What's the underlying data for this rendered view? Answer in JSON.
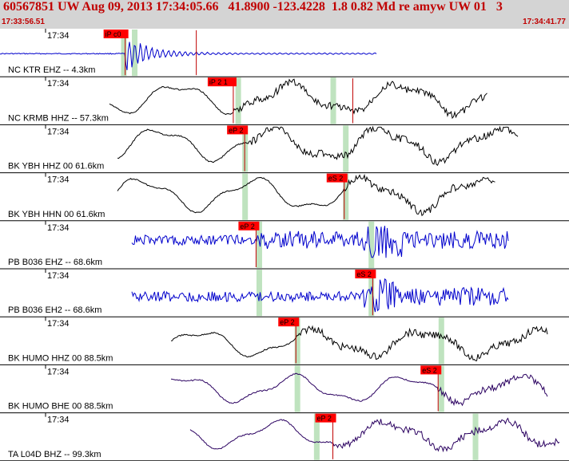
{
  "header": {
    "title": "60567851 UW Aug 09, 2013 17:34:05.66   41.8900 -123.4228  1.8 0.82 Md re amyw UW 01   3",
    "start_time": "17:33:56.51",
    "end_time": "17:34:41.77"
  },
  "colors": {
    "header_bg": "#d4d4d4",
    "header_text": "#c00000",
    "pick_box": "#ff0000",
    "pick_line": "#c00000",
    "window": "#bfe3bf",
    "trace_blue": "#0000cc",
    "trace_black": "#000000",
    "trace_purple": "#2a0060"
  },
  "channels": [
    {
      "label": "NC KTR EHZ -- 4.3km",
      "tick": "17:34",
      "color": "#0000cc",
      "picks": [
        {
          "label": "iP c0",
          "t": 0.22
        },
        {
          "label": "",
          "t": 0.345
        }
      ],
      "windows": [
        0.217,
        0.236
      ]
    },
    {
      "label": "NC KRMB HHZ -- 57.3km",
      "tick": "17:34",
      "color": "#000000",
      "picks": [
        {
          "label": "iP 2 1",
          "t": 0.41
        },
        {
          "label": "",
          "t": 0.62
        }
      ],
      "windows": [
        0.418,
        0.585
      ]
    },
    {
      "label": "BK YBH HHZ 00 61.6km",
      "tick": "17:34",
      "color": "#000000",
      "picks": [
        {
          "label": "eP 2",
          "t": 0.43
        }
      ],
      "windows": [
        0.43,
        0.607
      ]
    },
    {
      "label": "BK YBH HHN 00 61.6km",
      "tick": "17:34",
      "color": "#000000",
      "picks": [
        {
          "label": "eS 2",
          "t": 0.605
        }
      ],
      "windows": [
        0.43,
        0.607
      ]
    },
    {
      "label": "PB B036 EHZ -- 68.6km",
      "tick": "17:34",
      "color": "#0000cc",
      "picks": [
        {
          "label": "eP 2",
          "t": 0.45
        }
      ],
      "windows": [
        0.455,
        0.652
      ]
    },
    {
      "label": "PB B036 EH2 -- 68.6km",
      "tick": "17:34",
      "color": "#0000cc",
      "picks": [
        {
          "label": "eS 2",
          "t": 0.655
        }
      ],
      "windows": [
        0.455,
        0.652
      ]
    },
    {
      "label": "BK HUMO HHZ 00 88.5km",
      "tick": "17:34",
      "color": "#000000",
      "picks": [
        {
          "label": "eP 2",
          "t": 0.52
        }
      ],
      "windows": [
        0.522,
        0.775
      ]
    },
    {
      "label": "BK HUMO BHE 00 88.5km",
      "tick": "17:34",
      "color": "#2a0060",
      "picks": [
        {
          "label": "eS 2",
          "t": 0.77
        }
      ],
      "windows": [
        0.522,
        0.775
      ]
    },
    {
      "label": "TA L04D BHZ -- 99.3km",
      "tick": "17:34",
      "color": "#2a0060",
      "picks": [
        {
          "label": "eP 2",
          "t": 0.585
        }
      ],
      "windows": [
        0.556,
        0.835
      ]
    }
  ]
}
